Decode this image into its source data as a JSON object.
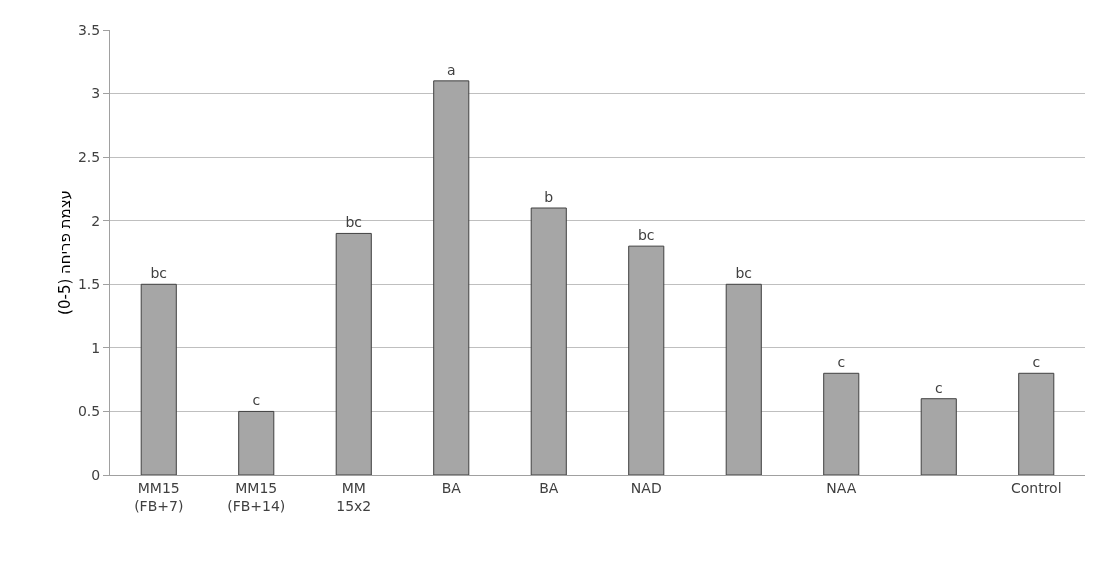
{
  "chart_data": {
    "type": "bar",
    "ylabel": "עצמת פריחה (0-5)",
    "categories": [
      "MM15\n(FB+7)",
      "MM15\n(FB+14)",
      "MM\n15x2",
      "BA",
      "BA",
      "NAD",
      null,
      "NAA",
      null,
      "Control"
    ],
    "values": [
      1.5,
      0.5,
      1.9,
      3.1,
      2.1,
      1.8,
      1.5,
      0.8,
      0.6,
      0.8
    ],
    "value_labels": [
      "bc",
      "c",
      "bc",
      "a",
      "b",
      "bc",
      "bc",
      "c",
      "c",
      "c"
    ],
    "color": "#a6a6a6",
    "ylim": [
      0,
      3.5
    ],
    "yticks": [
      0,
      0.5,
      1,
      1.5,
      2,
      2.5,
      3,
      3.5
    ],
    "grid": "y"
  }
}
